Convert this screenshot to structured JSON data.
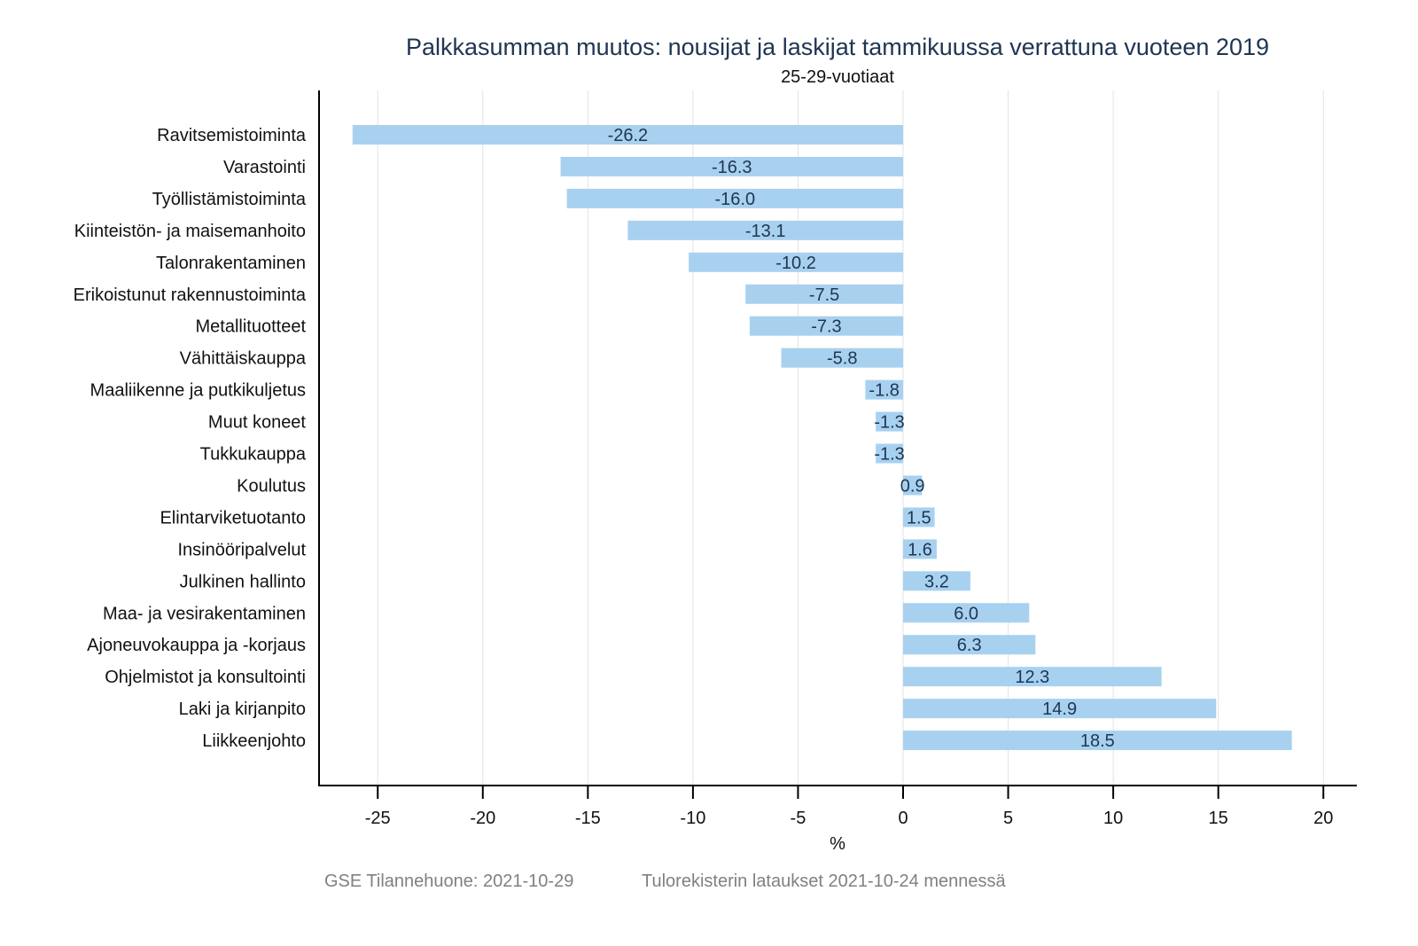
{
  "chart_data": {
    "type": "bar",
    "orientation": "horizontal",
    "title": "Palkkasumman muutos: nousijat ja laskijat tammikuussa verrattuna vuoteen 2019",
    "subtitle": "25-29-vuotiaat",
    "xlabel": "%",
    "ylabel": "",
    "xlim": [
      -28,
      21.5
    ],
    "xticks": [
      -25,
      -20,
      -15,
      -10,
      -5,
      0,
      5,
      10,
      15,
      20
    ],
    "grid": true,
    "legend": "none",
    "bar_color": "#a8d1f0",
    "label_color": "#1f3552",
    "categories": [
      "Ravitsemistoiminta",
      "Varastointi",
      "Työllistämistoiminta",
      "Kiinteistön- ja maisemanhoito",
      "Talonrakentaminen",
      "Erikoistunut rakennustoiminta",
      "Metallituotteet",
      "Vähittäiskauppa",
      "Maaliikenne ja putkikuljetus",
      "Muut koneet",
      "Tukkukauppa",
      "Koulutus",
      "Elintarviketuotanto",
      "Insinööripalvelut",
      "Julkinen hallinto",
      "Maa- ja vesirakentaminen",
      "Ajoneuvokauppa ja -korjaus",
      "Ohjelmistot ja konsultointi",
      "Laki ja kirjanpito",
      "Liikkeenjohto"
    ],
    "values": [
      -26.2,
      -16.3,
      -16.0,
      -13.1,
      -10.2,
      -7.5,
      -7.3,
      -5.8,
      -1.8,
      -1.3,
      -1.3,
      0.9,
      1.5,
      1.6,
      3.2,
      6.0,
      6.3,
      12.3,
      14.9,
      18.5
    ],
    "value_labels": [
      "-26.2",
      "-16.3",
      "-16.0",
      "-13.1",
      "-10.2",
      "-7.5",
      "-7.3",
      "-5.8",
      "-1.8",
      "-1.3",
      "-1.3",
      "0.9",
      "1.5",
      "1.6",
      "3.2",
      "6.0",
      "6.3",
      "12.3",
      "14.9",
      "18.5"
    ]
  },
  "footer": {
    "source": "GSE Tilannehuone: 2021-10-29",
    "note": "Tulorekisterin lataukset 2021-10-24 mennessä"
  }
}
